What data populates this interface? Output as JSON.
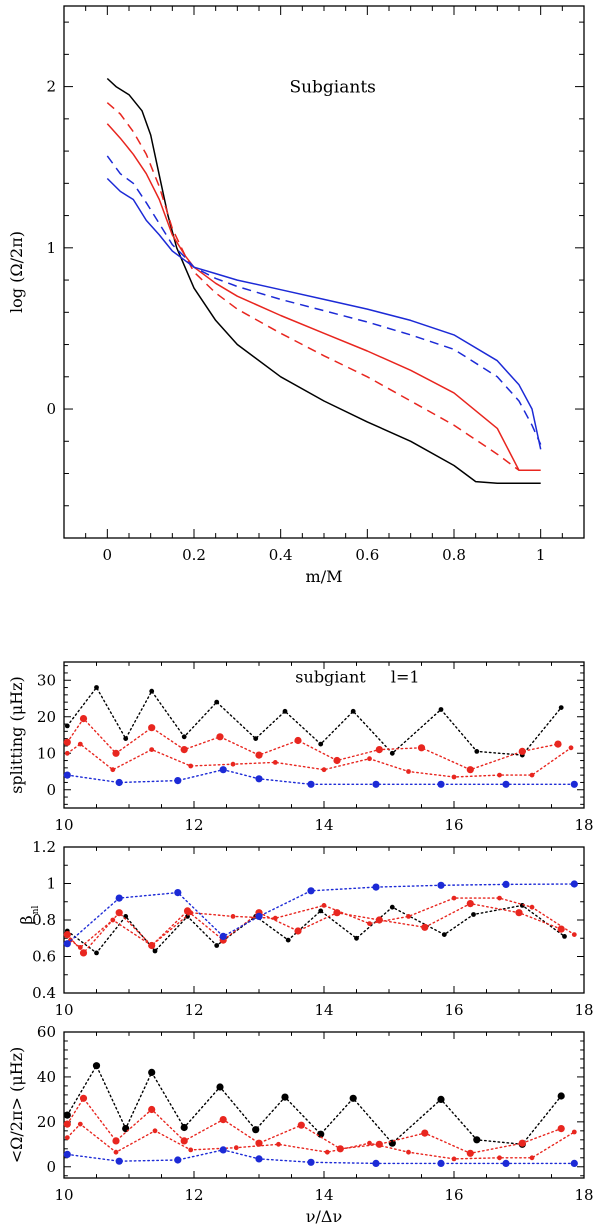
{
  "colors": {
    "black": "#000000",
    "red": "#e8261f",
    "blue": "#1c2ad6"
  },
  "chart_data": [
    {
      "id": "profiles",
      "type": "line",
      "title": "Subgiants",
      "xlabel": "m/M",
      "ylabel": "log (Ω/2π)",
      "xlim": [
        -0.1,
        1.1
      ],
      "ylim": [
        -0.8,
        2.5
      ],
      "xticks": [
        "0",
        "0.2",
        "0.4",
        "0.6",
        "0.8",
        "1"
      ],
      "xtick_values": [
        0,
        0.2,
        0.4,
        0.6,
        0.8,
        1
      ],
      "yticks": [
        "0",
        "1",
        "2"
      ],
      "ytick_values": [
        0,
        1,
        2
      ],
      "series": [
        {
          "name": "black-solid",
          "color": "black",
          "dash": false,
          "x": [
            0,
            0.02,
            0.05,
            0.08,
            0.1,
            0.12,
            0.14,
            0.16,
            0.2,
            0.25,
            0.3,
            0.4,
            0.5,
            0.6,
            0.7,
            0.8,
            0.85,
            0.9,
            1.0
          ],
          "y": [
            2.05,
            2.0,
            1.95,
            1.85,
            1.7,
            1.45,
            1.2,
            1.0,
            0.75,
            0.55,
            0.4,
            0.2,
            0.05,
            -0.08,
            -0.2,
            -0.35,
            -0.45,
            -0.46,
            -0.46
          ]
        },
        {
          "name": "red-dashed",
          "color": "red",
          "dash": true,
          "x": [
            0,
            0.03,
            0.06,
            0.09,
            0.12,
            0.15,
            0.18,
            0.2,
            0.25,
            0.3,
            0.4,
            0.5,
            0.6,
            0.7,
            0.8,
            0.9,
            0.95,
            1.0
          ],
          "y": [
            1.9,
            1.83,
            1.72,
            1.58,
            1.38,
            1.12,
            0.95,
            0.85,
            0.72,
            0.62,
            0.47,
            0.33,
            0.2,
            0.05,
            -0.1,
            -0.28,
            -0.38,
            -0.38
          ]
        },
        {
          "name": "red-solid",
          "color": "red",
          "dash": false,
          "x": [
            0,
            0.03,
            0.06,
            0.09,
            0.12,
            0.15,
            0.18,
            0.2,
            0.25,
            0.3,
            0.4,
            0.5,
            0.6,
            0.7,
            0.8,
            0.9,
            0.95,
            1.0
          ],
          "y": [
            1.77,
            1.68,
            1.58,
            1.46,
            1.3,
            1.08,
            0.95,
            0.88,
            0.78,
            0.7,
            0.58,
            0.47,
            0.36,
            0.24,
            0.1,
            -0.12,
            -0.38,
            -0.38
          ]
        },
        {
          "name": "blue-dashed",
          "color": "blue",
          "dash": true,
          "x": [
            0,
            0.03,
            0.06,
            0.09,
            0.12,
            0.15,
            0.18,
            0.2,
            0.25,
            0.3,
            0.4,
            0.5,
            0.6,
            0.7,
            0.8,
            0.9,
            0.95,
            0.98,
            1.0
          ],
          "y": [
            1.57,
            1.46,
            1.4,
            1.28,
            1.15,
            1.02,
            0.94,
            0.88,
            0.81,
            0.76,
            0.68,
            0.61,
            0.54,
            0.46,
            0.37,
            0.2,
            0.05,
            -0.1,
            -0.22
          ]
        },
        {
          "name": "blue-solid",
          "color": "blue",
          "dash": false,
          "x": [
            0,
            0.03,
            0.06,
            0.09,
            0.12,
            0.15,
            0.18,
            0.2,
            0.25,
            0.3,
            0.4,
            0.5,
            0.6,
            0.7,
            0.8,
            0.9,
            0.95,
            0.98,
            1.0
          ],
          "y": [
            1.43,
            1.35,
            1.3,
            1.17,
            1.08,
            0.98,
            0.92,
            0.88,
            0.84,
            0.8,
            0.74,
            0.68,
            0.62,
            0.55,
            0.46,
            0.3,
            0.15,
            0.0,
            -0.25
          ]
        }
      ]
    },
    {
      "id": "splitting",
      "type": "line",
      "annotation": "subgiant",
      "annotation2": "l=1",
      "ylabel": "splitting (μHz)",
      "xlim": [
        10,
        18
      ],
      "ylim": [
        -5,
        35
      ],
      "xticks": [
        "10",
        "12",
        "14",
        "16",
        "18"
      ],
      "xtick_values": [
        10,
        12,
        14,
        16,
        18
      ],
      "yticks": [
        "0",
        "10",
        "20",
        "30"
      ],
      "ytick_values": [
        0,
        10,
        20,
        30
      ],
      "series": [
        {
          "name": "black",
          "color": "black",
          "marker": "small",
          "x": [
            10.05,
            10.5,
            10.95,
            11.35,
            11.85,
            12.35,
            12.95,
            13.4,
            13.95,
            14.45,
            15.05,
            15.8,
            16.35,
            17.05,
            17.65
          ],
          "y": [
            17.5,
            28,
            14,
            27,
            14.5,
            24,
            14,
            21.5,
            12.5,
            21.5,
            10,
            22,
            10.5,
            9.5,
            22.5
          ]
        },
        {
          "name": "red-large",
          "color": "red",
          "marker": "large",
          "x": [
            10.05,
            10.3,
            10.8,
            11.35,
            11.85,
            12.4,
            13.0,
            13.6,
            14.2,
            14.85,
            15.5,
            16.25,
            17.05,
            17.6
          ],
          "y": [
            13,
            19.5,
            10,
            17,
            11,
            14.5,
            9.5,
            13.5,
            8,
            11,
            11.5,
            5.5,
            10.5,
            12.5
          ]
        },
        {
          "name": "red-small",
          "color": "red",
          "marker": "small",
          "x": [
            10.05,
            10.25,
            10.75,
            11.35,
            11.95,
            12.6,
            13.25,
            14.0,
            14.7,
            15.3,
            16.0,
            16.7,
            17.2,
            17.8
          ],
          "y": [
            10,
            12.5,
            5.5,
            11,
            6.5,
            7,
            7.5,
            5.5,
            8.5,
            5,
            3.5,
            4,
            4,
            11.5
          ]
        },
        {
          "name": "blue",
          "color": "blue",
          "marker": "large",
          "x": [
            10.05,
            10.85,
            11.75,
            12.45,
            13.0,
            13.8,
            14.8,
            15.8,
            16.8,
            17.85
          ],
          "y": [
            4,
            2,
            2.5,
            5.5,
            3,
            1.5,
            1.5,
            1.5,
            1.5,
            1.5
          ]
        }
      ]
    },
    {
      "id": "beta",
      "type": "line",
      "ylabel": "β",
      "ylabel_sub": "nl",
      "xlim": [
        10,
        18
      ],
      "ylim": [
        0.4,
        1.2
      ],
      "xticks": [
        "10",
        "12",
        "14",
        "16",
        "18"
      ],
      "xtick_values": [
        10,
        12,
        14,
        16,
        18
      ],
      "yticks": [
        "0.4",
        "0.6",
        "0.8",
        "1",
        "1.2"
      ],
      "ytick_values": [
        0.4,
        0.6,
        0.8,
        1.0,
        1.2
      ],
      "series": [
        {
          "name": "black",
          "color": "black",
          "marker": "small",
          "x": [
            10.05,
            10.5,
            10.95,
            11.4,
            11.9,
            12.35,
            12.95,
            13.45,
            13.95,
            14.5,
            15.05,
            15.85,
            16.3,
            17.05,
            17.7
          ],
          "y": [
            0.74,
            0.62,
            0.82,
            0.63,
            0.82,
            0.66,
            0.82,
            0.69,
            0.85,
            0.7,
            0.87,
            0.72,
            0.83,
            0.88,
            0.71
          ]
        },
        {
          "name": "red-large",
          "color": "red",
          "marker": "large",
          "x": [
            10.05,
            10.3,
            10.85,
            11.35,
            11.9,
            12.45,
            13.0,
            13.6,
            14.2,
            14.85,
            15.55,
            16.25,
            17.0,
            17.65
          ],
          "y": [
            0.72,
            0.62,
            0.84,
            0.66,
            0.85,
            0.69,
            0.84,
            0.74,
            0.84,
            0.8,
            0.76,
            0.89,
            0.84,
            0.75
          ]
        },
        {
          "name": "red-small",
          "color": "red",
          "marker": "small",
          "x": [
            10.1,
            10.25,
            10.75,
            11.35,
            11.95,
            12.6,
            13.25,
            14.0,
            14.7,
            15.3,
            16.0,
            16.7,
            17.2,
            17.85
          ],
          "y": [
            0.69,
            0.65,
            0.8,
            0.66,
            0.84,
            0.82,
            0.81,
            0.88,
            0.78,
            0.82,
            0.92,
            0.92,
            0.87,
            0.72
          ]
        },
        {
          "name": "blue",
          "color": "blue",
          "marker": "large",
          "x": [
            10.05,
            10.85,
            11.75,
            12.45,
            13.0,
            13.8,
            14.8,
            15.8,
            16.8,
            17.85
          ],
          "y": [
            0.67,
            0.92,
            0.95,
            0.71,
            0.82,
            0.96,
            0.98,
            0.99,
            0.995,
            0.997
          ]
        }
      ]
    },
    {
      "id": "omega",
      "type": "line",
      "xlabel": "ν/Δν",
      "ylabel": "<Ω/2π> (μHz)",
      "xlim": [
        10,
        18
      ],
      "ylim": [
        -5,
        60
      ],
      "xticks": [
        "10",
        "12",
        "14",
        "16",
        "18"
      ],
      "xtick_values": [
        10,
        12,
        14,
        16,
        18
      ],
      "yticks": [
        "0",
        "20",
        "40",
        "60"
      ],
      "ytick_values": [
        0,
        20,
        40,
        60
      ],
      "series": [
        {
          "name": "black",
          "color": "black",
          "marker": "large",
          "x": [
            10.05,
            10.5,
            10.95,
            11.35,
            11.85,
            12.4,
            12.95,
            13.4,
            13.95,
            14.45,
            15.05,
            15.8,
            16.35,
            17.05,
            17.65
          ],
          "y": [
            23,
            45,
            17,
            42,
            17.5,
            35.5,
            16.5,
            31,
            14.5,
            30.5,
            10.5,
            30,
            12,
            10,
            31.5
          ]
        },
        {
          "name": "red-large",
          "color": "red",
          "marker": "large",
          "x": [
            10.05,
            10.3,
            10.8,
            11.35,
            11.85,
            12.45,
            13.0,
            13.65,
            14.25,
            14.85,
            15.55,
            16.25,
            17.05,
            17.65
          ],
          "y": [
            19,
            30.5,
            11.5,
            25.5,
            11.5,
            21,
            10.5,
            18.5,
            8,
            10,
            15,
            6,
            10.5,
            17
          ]
        },
        {
          "name": "red-small",
          "color": "red",
          "marker": "small",
          "x": [
            10.05,
            10.25,
            10.8,
            11.4,
            11.95,
            12.65,
            13.3,
            14.05,
            14.7,
            15.3,
            16.0,
            16.7,
            17.2,
            17.85
          ],
          "y": [
            13,
            19,
            6.5,
            16,
            7.5,
            8.5,
            10,
            6.5,
            10.5,
            6.5,
            3.5,
            4,
            4,
            15.5
          ]
        },
        {
          "name": "blue",
          "color": "blue",
          "marker": "large",
          "x": [
            10.05,
            10.85,
            11.75,
            12.45,
            13.0,
            13.8,
            14.8,
            15.8,
            16.8,
            17.85
          ],
          "y": [
            5.5,
            2.5,
            3,
            7.5,
            3.5,
            2,
            1.5,
            1.5,
            1.5,
            1.5
          ]
        }
      ]
    }
  ]
}
